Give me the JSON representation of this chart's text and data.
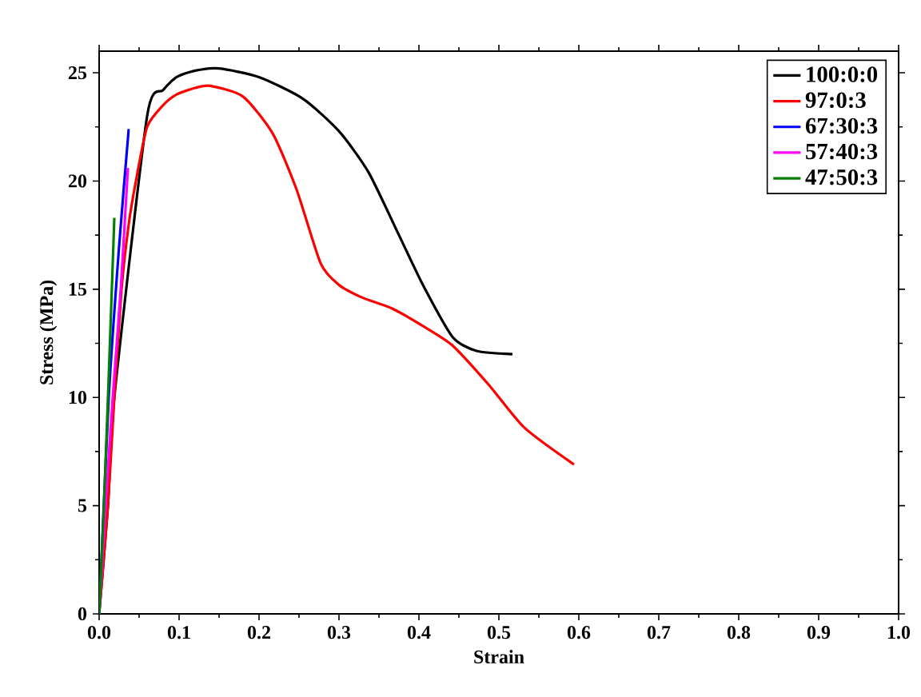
{
  "chart_data": {
    "type": "line",
    "xlabel": "Strain",
    "ylabel": "Stress (MPa)",
    "xlim": [
      0,
      1.0
    ],
    "ylim": [
      0,
      26
    ],
    "xticks": [
      {
        "value": 0,
        "label": "0.0"
      },
      0.1,
      0.2,
      0.3,
      0.4,
      0.5,
      0.6,
      0.7,
      0.8,
      0.9,
      {
        "value": 1.0,
        "label": "1.0"
      }
    ],
    "yticks": [
      0,
      5,
      10,
      15,
      20,
      25
    ],
    "legend": "top right",
    "grid": false,
    "marker": "none",
    "line_style": "solid",
    "series": [
      {
        "name": "100:0:0",
        "color": "#000000",
        "x": [
          0,
          0.011,
          0.019,
          0.028,
          0.037,
          0.046,
          0.06,
          0.08,
          0.097,
          0.12,
          0.15,
          0.2,
          0.255,
          0.3,
          0.337,
          0.375,
          0.405,
          0.442,
          0.472,
          0.517
        ],
        "values": [
          0,
          5,
          10,
          null,
          null,
          null,
          23.0,
          24.2,
          24.8,
          25.1,
          25.2,
          24.8,
          23.8,
          22.3,
          20.4,
          17.5,
          15.2,
          12.8,
          12.15,
          12.0
        ]
      },
      {
        "name": "97:0:3",
        "color": "#ff0000",
        "x": [
          0,
          0.011,
          0.019,
          0.028,
          0.037,
          0.046,
          0.06,
          0.08,
          0.097,
          0.12,
          0.139,
          0.18,
          0.217,
          0.247,
          0.277,
          0.3,
          0.33,
          0.367,
          0.405,
          0.442,
          0.487,
          0.532,
          0.594
        ],
        "values": [
          0,
          5,
          10,
          15,
          18,
          20,
          22.5,
          23.5,
          24.0,
          24.3,
          24.4,
          23.9,
          22.2,
          19.6,
          16.2,
          15.2,
          14.6,
          14.1,
          13.3,
          12.4,
          10.6,
          8.6,
          6.9
        ]
      },
      {
        "name": "67:30:3",
        "color": "#0000ff",
        "x": [
          0,
          0.012,
          0.025,
          0.037
        ],
        "values": [
          0,
          10,
          17,
          22.4
        ]
      },
      {
        "name": "57:40:3",
        "color": "#ff00ff",
        "x": [
          0,
          0.008,
          0.017,
          0.027,
          0.036
        ],
        "values": [
          0,
          5,
          10,
          15,
          20.6
        ]
      },
      {
        "name": "47:50:3",
        "color": "#008000",
        "x": [
          0,
          0.006,
          0.013,
          0.019
        ],
        "values": [
          0,
          5,
          12,
          18.3
        ]
      }
    ]
  }
}
